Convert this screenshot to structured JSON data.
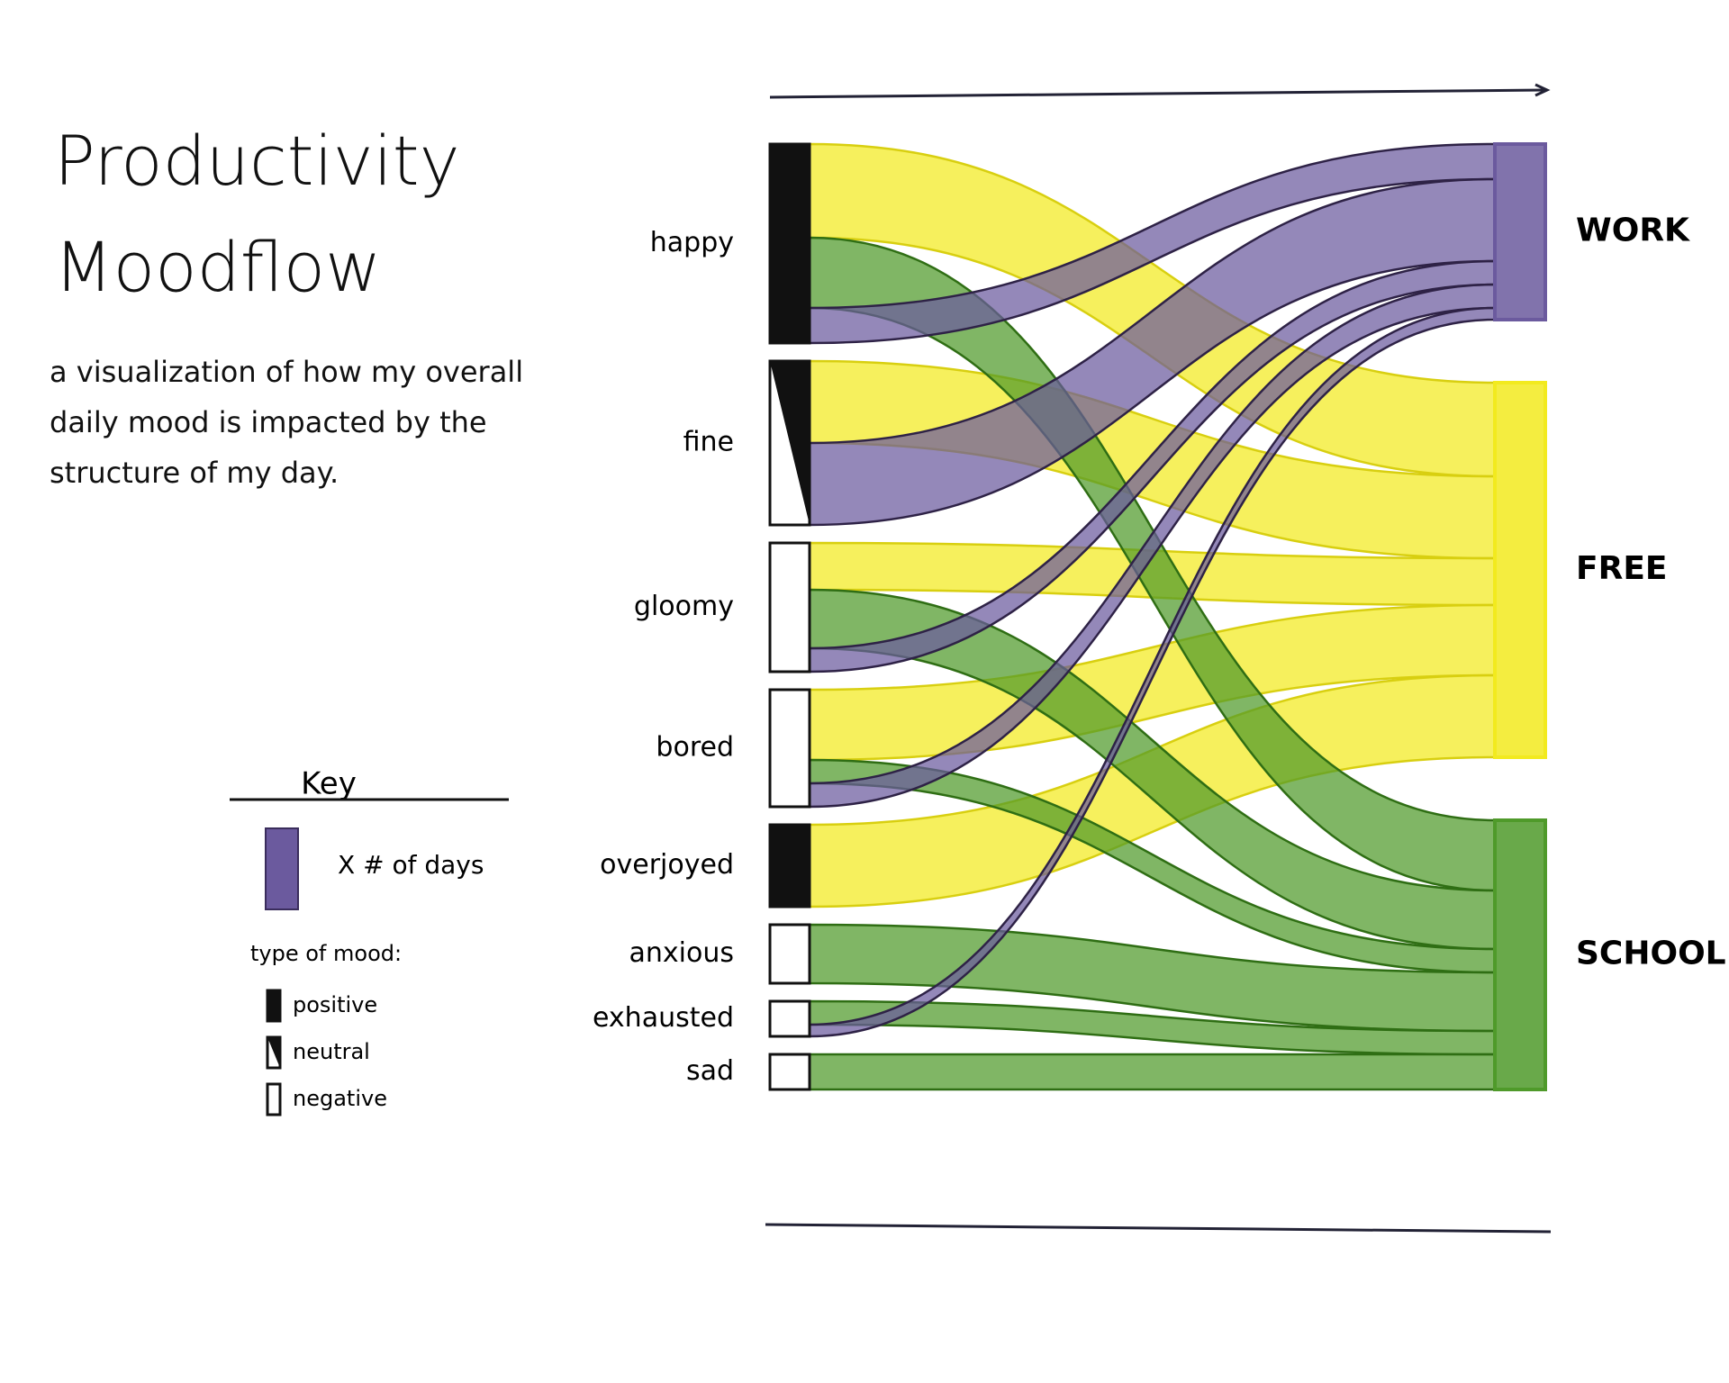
{
  "chart_data": {
    "type": "sankey",
    "title": "Productivity Moodflow",
    "subtitle": "a visualization of how my overall daily mood is impacted by the structure of my day.",
    "key": {
      "title": "Key",
      "size_label": "X # of days",
      "mood_title": "type of mood:",
      "moods": [
        "positive",
        "neutral",
        "negative"
      ]
    },
    "nodes": [
      {
        "name": "happy",
        "mood": "positive"
      },
      {
        "name": "fine",
        "mood": "neutral"
      },
      {
        "name": "gloomy",
        "mood": "negative"
      },
      {
        "name": "bored",
        "mood": "negative"
      },
      {
        "name": "overjoyed",
        "mood": "positive"
      },
      {
        "name": "anxious",
        "mood": "negative"
      },
      {
        "name": "exhausted",
        "mood": "negative"
      },
      {
        "name": "sad",
        "mood": "negative"
      }
    ],
    "targets": [
      {
        "name": "WORK",
        "color": "#6b5a9e"
      },
      {
        "name": "FREE",
        "color": "#f2ea1e"
      },
      {
        "name": "SCHOOL",
        "color": "#4f9a2a"
      }
    ],
    "links": [
      {
        "source": "happy",
        "target": "FREE",
        "value": 8
      },
      {
        "source": "happy",
        "target": "SCHOOL",
        "value": 6
      },
      {
        "source": "happy",
        "target": "WORK",
        "value": 3
      },
      {
        "source": "fine",
        "target": "FREE",
        "value": 7
      },
      {
        "source": "fine",
        "target": "WORK",
        "value": 7
      },
      {
        "source": "gloomy",
        "target": "FREE",
        "value": 4
      },
      {
        "source": "gloomy",
        "target": "SCHOOL",
        "value": 5
      },
      {
        "source": "gloomy",
        "target": "WORK",
        "value": 2
      },
      {
        "source": "bored",
        "target": "FREE",
        "value": 6
      },
      {
        "source": "bored",
        "target": "SCHOOL",
        "value": 2
      },
      {
        "source": "bored",
        "target": "WORK",
        "value": 2
      },
      {
        "source": "overjoyed",
        "target": "FREE",
        "value": 7
      },
      {
        "source": "anxious",
        "target": "SCHOOL",
        "value": 5
      },
      {
        "source": "exhausted",
        "target": "SCHOOL",
        "value": 2
      },
      {
        "source": "exhausted",
        "target": "WORK",
        "value": 1
      },
      {
        "source": "sad",
        "target": "SCHOOL",
        "value": 3
      }
    ]
  }
}
